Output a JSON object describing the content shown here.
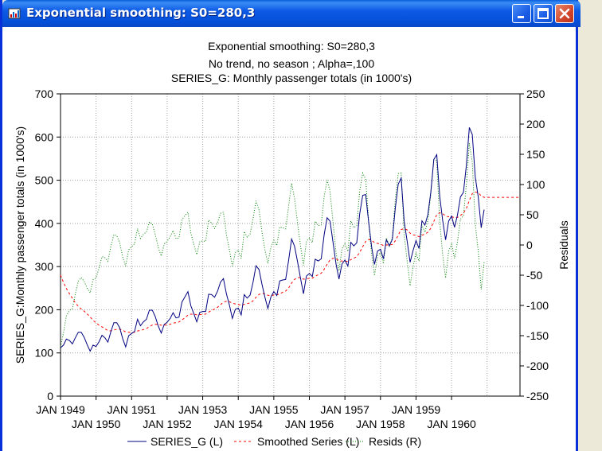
{
  "window": {
    "title": "Exponential smoothing:  S0=280,3",
    "app_icon": "statistica-chart-icon",
    "buttons": [
      "minimize-icon",
      "maximize-icon",
      "close-icon"
    ]
  },
  "chart_data": {
    "type": "line",
    "title": "Exponential smoothing:  S0=280,3",
    "subtitle1": "No trend, no season   ; Alpha=,100",
    "subtitle2": "SERIES_G: Monthly passenger totals (in 1000's)",
    "ylabel": "SERIES_G:Monthly passenger totals (in 1000's)",
    "y2label": "Residuals",
    "ylim": [
      0,
      700
    ],
    "y2lim": [
      -250,
      250
    ],
    "yticks": [
      "0",
      "100",
      "200",
      "300",
      "400",
      "500",
      "600",
      "700"
    ],
    "y2ticks": [
      "-250",
      "-200",
      "-150",
      "-100",
      "-50",
      "0",
      "50",
      "100",
      "150",
      "200",
      "250"
    ],
    "xticks_top": [
      "JAN 1949",
      "JAN 1951",
      "JAN 1953",
      "JAN 1955",
      "JAN 1957",
      "JAN 1959"
    ],
    "xticks_bottom": [
      "JAN 1950",
      "JAN 1952",
      "JAN 1954",
      "JAN 1956",
      "JAN 1958",
      "JAN 1960"
    ],
    "grid": true,
    "legend_position": "bottom",
    "series": [
      {
        "name": "SERIES_G (L)",
        "axis": "left",
        "color": "#000080",
        "style": "solid",
        "values": [
          112,
          118,
          132,
          129,
          121,
          135,
          148,
          148,
          136,
          119,
          104,
          118,
          115,
          126,
          141,
          135,
          125,
          149,
          170,
          170,
          158,
          133,
          114,
          140,
          145,
          150,
          178,
          163,
          172,
          178,
          199,
          199,
          184,
          162,
          146,
          166,
          171,
          180,
          193,
          181,
          183,
          218,
          230,
          242,
          209,
          191,
          172,
          194,
          196,
          196,
          236,
          235,
          229,
          243,
          264,
          272,
          237,
          211,
          180,
          201,
          204,
          188,
          235,
          227,
          234,
          264,
          302,
          293,
          259,
          229,
          203,
          229,
          242,
          233,
          267,
          269,
          270,
          315,
          364,
          347,
          312,
          274,
          237,
          278,
          284,
          277,
          317,
          313,
          318,
          374,
          413,
          405,
          355,
          306,
          271,
          306,
          315,
          301,
          356,
          348,
          355,
          422,
          465,
          467,
          404,
          347,
          305,
          336,
          340,
          318,
          362,
          348,
          363,
          435,
          491,
          505,
          404,
          359,
          310,
          337,
          360,
          342,
          406,
          396,
          420,
          472,
          548,
          559,
          463,
          407,
          362,
          405,
          417,
          391,
          419,
          461,
          472,
          535,
          622,
          606,
          508,
          461,
          390,
          432
        ]
      },
      {
        "name": "Smoothed Series (L)",
        "axis": "left",
        "color": "#ff0000",
        "style": "dashed",
        "values": [
          280.3,
          263.5,
          249.0,
          237.3,
          226.5,
          216.0,
          207.9,
          201.9,
          196.5,
          190.4,
          183.3,
          175.4,
          169.7,
          164.2,
          160.4,
          155.9,
          151.8,
          151.1,
          153.0,
          154.7,
          155.0,
          152.8,
          148.9,
          148.0,
          147.7,
          147.9,
          150.9,
          152.1,
          154.2,
          156.6,
          160.8,
          164.6,
          166.6,
          166.2,
          164.2,
          164.4,
          165.0,
          166.5,
          169.1,
          170.3,
          171.6,
          176.2,
          181.6,
          187.6,
          189.8,
          189.9,
          188.1,
          188.7,
          189.4,
          190.0,
          194.6,
          198.6,
          201.6,
          205.8,
          211.6,
          217.6,
          219.6,
          218.8,
          214.9,
          213.5,
          212.5,
          210.1,
          212.6,
          214.0,
          216.0,
          220.8,
          229.0,
          235.4,
          237.8,
          236.9,
          233.5,
          233.1,
          234.0,
          233.9,
          237.2,
          240.4,
          243.4,
          250.5,
          261.8,
          270.3,
          274.5,
          274.5,
          270.7,
          271.5,
          272.8,
          273.2,
          277.6,
          281.1,
          284.8,
          293.7,
          305.6,
          315.6,
          319.5,
          318.2,
          313.5,
          312.7,
          312.9,
          311.7,
          316.1,
          319.3,
          322.9,
          332.8,
          346.0,
          358.1,
          362.7,
          361.1,
          355.5,
          353.6,
          352.2,
          348.8,
          350.1,
          349.9,
          351.2,
          359.6,
          372.8,
          386.0,
          387.8,
          385.0,
          377.5,
          373.5,
          372.2,
          369.1,
          372.7,
          375.0,
          379.5,
          388.7,
          404.6,
          420.1,
          424.4,
          422.7,
          416.6,
          415.4,
          415.5,
          413.1,
          413.7,
          418.4,
          423.7,
          434.8,
          453.5,
          468.8,
          472.7,
          471.5,
          463.4,
          460.3,
          460.3,
          460.3,
          460.3,
          460.3,
          460.3,
          460.3,
          460.3,
          460.3,
          460.3,
          460.3,
          460.3,
          460.3
        ]
      },
      {
        "name": "Resids (R)",
        "axis": "right",
        "color": "#008000",
        "style": "dotted",
        "values": [
          -168.3,
          -145.5,
          -117.0,
          -108.3,
          -105.5,
          -81.0,
          -59.9,
          -53.9,
          -60.5,
          -71.4,
          -79.3,
          -57.4,
          -54.7,
          -38.2,
          -19.4,
          -20.9,
          -26.8,
          -2.1,
          17.0,
          15.3,
          3.0,
          -19.8,
          -34.9,
          -8.0,
          -2.7,
          2.1,
          27.1,
          10.9,
          17.8,
          21.4,
          38.2,
          34.4,
          17.4,
          -4.2,
          -18.2,
          1.6,
          6.0,
          13.5,
          23.9,
          10.7,
          11.4,
          41.8,
          48.4,
          54.4,
          19.2,
          1.1,
          -16.1,
          5.3,
          6.6,
          6.0,
          41.4,
          36.4,
          27.4,
          37.2,
          52.4,
          54.4,
          17.4,
          -7.8,
          -34.9,
          -12.5,
          -8.5,
          -22.1,
          22.4,
          13.0,
          18.0,
          43.2,
          73.0,
          57.6,
          21.2,
          -7.9,
          -30.5,
          -4.1,
          8.0,
          -0.9,
          29.8,
          28.6,
          26.6,
          64.5,
          102.2,
          76.7,
          37.5,
          -0.5,
          -33.7,
          6.5,
          11.2,
          3.8,
          39.4,
          31.9,
          33.2,
          80.3,
          107.4,
          89.4,
          35.5,
          -12.2,
          -42.5,
          -6.7,
          2.1,
          -10.7,
          39.9,
          28.7,
          32.1,
          89.2,
          119.0,
          108.9,
          41.3,
          -14.1,
          -50.5,
          -17.6,
          -12.2,
          -30.8,
          11.9,
          -1.9,
          11.8,
          75.4,
          118.2,
          119.0,
          16.2,
          -26.0,
          -67.5,
          -36.5,
          -12.2,
          -27.1,
          33.3,
          21.0,
          40.5,
          83.3,
          143.4,
          138.9,
          38.6,
          -15.7,
          -54.6,
          -10.4,
          1.5,
          -22.1,
          5.3,
          42.6,
          48.3,
          100.2,
          168.5,
          137.2,
          35.3,
          -10.5,
          -73.4,
          -28.3
        ]
      }
    ]
  }
}
